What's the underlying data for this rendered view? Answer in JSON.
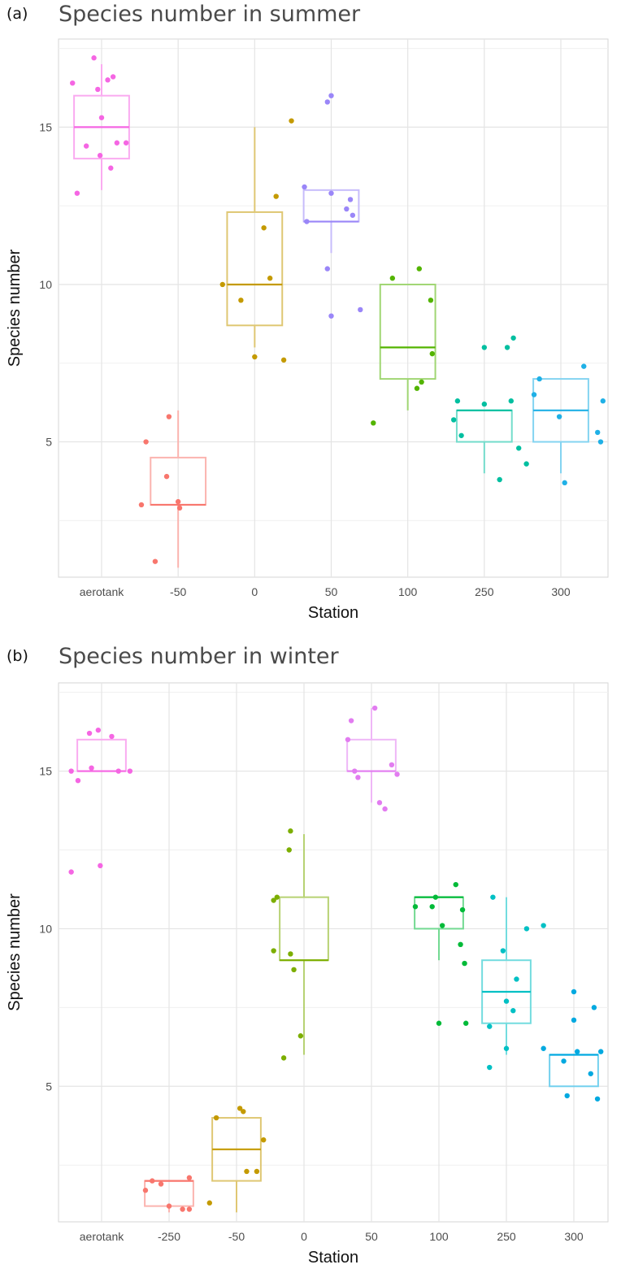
{
  "chart_data": [
    {
      "type": "box",
      "panel_label": "(a)",
      "title": "Species number in summer",
      "xlabel": "Station",
      "ylabel": "Species number",
      "ylim": [
        0.7,
        17.8
      ],
      "y_ticks": [
        5,
        10,
        15
      ],
      "grid": true,
      "legend": "none",
      "categories": [
        "aerotank",
        "-50",
        "0",
        "50",
        "100",
        "250",
        "300"
      ],
      "colors": [
        "#F566E3",
        "#F8766D",
        "#C49A00",
        "#9A86F8",
        "#53B400",
        "#00BFA0",
        "#1FB0E6"
      ],
      "boxes": [
        {
          "q1": 14,
          "median": 15,
          "q3": 16,
          "low": 13,
          "high": 17
        },
        {
          "q1": 3,
          "median": 3,
          "q3": 4.5,
          "low": 1,
          "high": 6
        },
        {
          "q1": 8.7,
          "median": 10,
          "q3": 12.3,
          "low": 8,
          "high": 15
        },
        {
          "q1": 12,
          "median": 12,
          "q3": 13,
          "low": 11,
          "high": 13
        },
        {
          "q1": 7,
          "median": 8,
          "q3": 10,
          "low": 6,
          "high": 10
        },
        {
          "q1": 5,
          "median": 6,
          "q3": 6,
          "low": 4,
          "high": 6
        },
        {
          "q1": 5,
          "median": 6,
          "q3": 7,
          "low": 4,
          "high": 7
        }
      ],
      "points": [
        [
          [
            -0.38,
            16.4
          ],
          [
            -0.1,
            17.2
          ],
          [
            0.15,
            16.6
          ],
          [
            -0.05,
            16.2
          ],
          [
            0.08,
            16.5
          ],
          [
            -0.2,
            14.4
          ],
          [
            0.0,
            15.3
          ],
          [
            -0.02,
            14.1
          ],
          [
            0.2,
            14.5
          ],
          [
            0.12,
            13.7
          ],
          [
            -0.32,
            12.9
          ],
          [
            0.32,
            14.5
          ]
        ],
        [
          [
            -0.42,
            5.0
          ],
          [
            -0.12,
            5.8
          ],
          [
            -0.15,
            3.9
          ],
          [
            -0.48,
            3.0
          ],
          [
            0.0,
            3.1
          ],
          [
            0.02,
            2.9
          ],
          [
            -0.3,
            1.2
          ]
        ],
        [
          [
            -0.42,
            10.0
          ],
          [
            -0.18,
            9.5
          ],
          [
            0.12,
            11.8
          ],
          [
            0.28,
            12.8
          ],
          [
            0.2,
            10.2
          ],
          [
            0.0,
            7.7
          ],
          [
            0.38,
            7.6
          ],
          [
            0.48,
            15.2
          ]
        ],
        [
          [
            -0.35,
            13.1
          ],
          [
            -0.32,
            12.0
          ],
          [
            -0.05,
            15.8
          ],
          [
            0.0,
            16.0
          ],
          [
            0.0,
            12.9
          ],
          [
            0.25,
            12.7
          ],
          [
            0.2,
            12.4
          ],
          [
            0.28,
            12.2
          ],
          [
            -0.05,
            10.5
          ],
          [
            0.0,
            9.0
          ],
          [
            0.38,
            9.2
          ]
        ],
        [
          [
            -0.2,
            10.2
          ],
          [
            0.15,
            10.5
          ],
          [
            0.3,
            9.5
          ],
          [
            -0.45,
            5.6
          ],
          [
            0.32,
            7.8
          ],
          [
            0.18,
            6.9
          ],
          [
            0.12,
            6.7
          ]
        ],
        [
          [
            -0.4,
            5.7
          ],
          [
            -0.35,
            6.3
          ],
          [
            0.0,
            6.2
          ],
          [
            0.0,
            8.0
          ],
          [
            0.3,
            8.0
          ],
          [
            0.38,
            8.3
          ],
          [
            0.35,
            6.3
          ],
          [
            -0.3,
            5.2
          ],
          [
            0.45,
            4.8
          ],
          [
            0.2,
            3.8
          ],
          [
            0.55,
            4.3
          ]
        ],
        [
          [
            -0.35,
            6.5
          ],
          [
            -0.28,
            7.0
          ],
          [
            -0.02,
            5.8
          ],
          [
            0.3,
            7.4
          ],
          [
            0.55,
            6.3
          ],
          [
            0.48,
            5.3
          ],
          [
            0.52,
            5.0
          ],
          [
            0.05,
            3.7
          ]
        ]
      ]
    },
    {
      "type": "box",
      "panel_label": "(b)",
      "title": "Species number in winter",
      "xlabel": "Station",
      "ylabel": "Species number",
      "ylim": [
        0.7,
        17.8
      ],
      "y_ticks": [
        5,
        10,
        15
      ],
      "grid": true,
      "legend": "none",
      "categories": [
        "aerotank",
        "-250",
        "-50",
        "0",
        "50",
        "100",
        "250",
        "300"
      ],
      "colors": [
        "#F566E3",
        "#F8766D",
        "#C49A00",
        "#7CAE00",
        "#E27CF0",
        "#00BA38",
        "#00C0C4",
        "#00A9E0"
      ],
      "boxes": [
        {
          "q1": 15,
          "median": 15,
          "q3": 16,
          "low": 15,
          "high": 16
        },
        {
          "q1": 1.2,
          "median": 2,
          "q3": 2,
          "low": 1,
          "high": 2
        },
        {
          "q1": 2,
          "median": 3,
          "q3": 4,
          "low": 1,
          "high": 4
        },
        {
          "q1": 9,
          "median": 9,
          "q3": 11,
          "low": 6,
          "high": 13
        },
        {
          "q1": 15,
          "median": 15,
          "q3": 16,
          "low": 14,
          "high": 17
        },
        {
          "q1": 10,
          "median": 11,
          "q3": 11,
          "low": 9,
          "high": 11
        },
        {
          "q1": 7,
          "median": 8,
          "q3": 9,
          "low": 6,
          "high": 11
        },
        {
          "q1": 5,
          "median": 6,
          "q3": 6,
          "low": 5,
          "high": 6
        }
      ],
      "points": [
        [
          [
            -0.45,
            15.0
          ],
          [
            -0.35,
            14.7
          ],
          [
            -0.18,
            16.2
          ],
          [
            -0.05,
            16.3
          ],
          [
            0.15,
            16.1
          ],
          [
            -0.15,
            15.1
          ],
          [
            0.25,
            15.0
          ],
          [
            0.42,
            15.0
          ],
          [
            -0.45,
            11.8
          ],
          [
            -0.02,
            12.0
          ]
        ],
        [
          [
            -0.35,
            1.7
          ],
          [
            -0.25,
            2.0
          ],
          [
            -0.12,
            1.9
          ],
          [
            0.3,
            2.1
          ],
          [
            0.2,
            1.1
          ],
          [
            0.3,
            1.1
          ],
          [
            0.0,
            1.2
          ]
        ],
        [
          [
            -0.4,
            1.3
          ],
          [
            -0.3,
            4.0
          ],
          [
            0.05,
            4.3
          ],
          [
            0.1,
            4.2
          ],
          [
            0.4,
            3.3
          ],
          [
            0.15,
            2.3
          ],
          [
            0.3,
            2.3
          ]
        ],
        [
          [
            -0.2,
            13.1
          ],
          [
            -0.22,
            12.5
          ],
          [
            -0.4,
            11.0
          ],
          [
            -0.45,
            10.9
          ],
          [
            -0.45,
            9.3
          ],
          [
            -0.2,
            9.2
          ],
          [
            -0.15,
            8.7
          ],
          [
            -0.05,
            6.6
          ],
          [
            -0.3,
            5.9
          ]
        ],
        [
          [
            -0.35,
            16.0
          ],
          [
            -0.3,
            16.6
          ],
          [
            -0.25,
            15.0
          ],
          [
            -0.2,
            14.8
          ],
          [
            0.05,
            17.0
          ],
          [
            0.3,
            15.2
          ],
          [
            0.38,
            14.9
          ],
          [
            0.12,
            14.0
          ],
          [
            0.2,
            13.8
          ]
        ],
        [
          [
            -0.35,
            10.7
          ],
          [
            -0.1,
            10.7
          ],
          [
            -0.05,
            11.0
          ],
          [
            0.05,
            10.1
          ],
          [
            0.25,
            11.4
          ],
          [
            0.35,
            10.6
          ],
          [
            0.32,
            9.5
          ],
          [
            0.38,
            8.9
          ],
          [
            0.0,
            7.0
          ],
          [
            0.4,
            7.0
          ]
        ],
        [
          [
            -0.2,
            11.0
          ],
          [
            -0.05,
            9.3
          ],
          [
            0.3,
            10.0
          ],
          [
            0.15,
            8.4
          ],
          [
            0.1,
            7.4
          ],
          [
            -0.25,
            6.9
          ],
          [
            0.0,
            6.2
          ],
          [
            -0.25,
            5.6
          ],
          [
            0.55,
            10.1
          ],
          [
            0.0,
            7.7
          ]
        ],
        [
          [
            -0.45,
            6.2
          ],
          [
            -0.15,
            5.8
          ],
          [
            0.0,
            8.0
          ],
          [
            0.3,
            7.5
          ],
          [
            0.05,
            6.1
          ],
          [
            0.4,
            6.1
          ],
          [
            0.25,
            5.4
          ],
          [
            -0.1,
            4.7
          ],
          [
            0.35,
            4.6
          ],
          [
            0.0,
            7.1
          ]
        ]
      ]
    }
  ]
}
